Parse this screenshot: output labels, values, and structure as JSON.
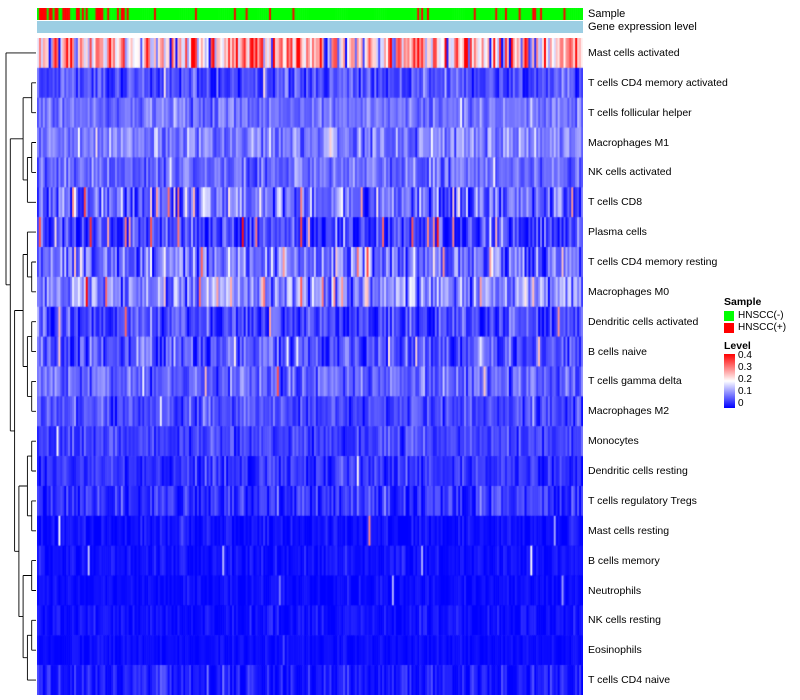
{
  "chart_data": {
    "type": "heatmap",
    "columns": 280,
    "seed": 42,
    "value_range": [
      0,
      0.4
    ],
    "colormap": {
      "low": "#0000FF",
      "mid": "#FFFFFF",
      "high": "#FF0000",
      "mid_value": 0.2
    },
    "top_annotations": [
      {
        "label": "Sample",
        "type": "categorical",
        "classes": [
          {
            "name": "HNSCC(-)",
            "color": "#00FF00"
          },
          {
            "name": "HNSCC(+)",
            "color": "#FF0000"
          }
        ],
        "segments": [
          {
            "until": 0.16,
            "red_prob": 0.6
          },
          {
            "until": 0.8,
            "red_prob": 0.07
          },
          {
            "until": 1.0,
            "red_prob": 0.2
          }
        ]
      },
      {
        "label": "Gene expression level",
        "type": "uniform",
        "color": "#9CCEE3"
      }
    ],
    "rows": [
      {
        "label": "Mast cells activated",
        "mean": 0.27,
        "sd": 0.09,
        "outlier_prob": 0.08,
        "outlier_mean": 0.04
      },
      {
        "label": "T cells CD4 memory activated",
        "mean": 0.055,
        "sd": 0.03,
        "outlier_prob": 0.03,
        "outlier_mean": 0.18
      },
      {
        "label": "T cells follicular helper",
        "mean": 0.085,
        "sd": 0.025,
        "outlier_prob": 0.02,
        "outlier_mean": 0.16
      },
      {
        "label": "Macrophages M1",
        "mean": 0.1,
        "sd": 0.035,
        "outlier_prob": 0.02,
        "outlier_mean": 0.2
      },
      {
        "label": "NK cells activated",
        "mean": 0.085,
        "sd": 0.03,
        "outlier_prob": 0.02,
        "outlier_mean": 0.18
      },
      {
        "label": "T cells CD8",
        "mean": 0.075,
        "sd": 0.05,
        "outlier_prob": 0.05,
        "outlier_mean": 0.25
      },
      {
        "label": "Plasma cells",
        "mean": 0.05,
        "sd": 0.04,
        "outlier_prob": 0.05,
        "outlier_mean": 0.3
      },
      {
        "label": "T cells CD4 memory resting",
        "mean": 0.09,
        "sd": 0.05,
        "outlier_prob": 0.04,
        "outlier_mean": 0.28
      },
      {
        "label": "Macrophages M0",
        "mean": 0.11,
        "sd": 0.05,
        "outlier_prob": 0.03,
        "outlier_mean": 0.3
      },
      {
        "label": "Dendritic cells activated",
        "mean": 0.05,
        "sd": 0.035,
        "outlier_prob": 0.03,
        "outlier_mean": 0.25
      },
      {
        "label": "B cells naive",
        "mean": 0.065,
        "sd": 0.04,
        "outlier_prob": 0.02,
        "outlier_mean": 0.2
      },
      {
        "label": "T cells gamma delta",
        "mean": 0.075,
        "sd": 0.03,
        "outlier_prob": 0.02,
        "outlier_mean": 0.22
      },
      {
        "label": "Macrophages M2",
        "mean": 0.055,
        "sd": 0.025,
        "outlier_prob": 0.01,
        "outlier_mean": 0.15
      },
      {
        "label": "Monocytes",
        "mean": 0.05,
        "sd": 0.022,
        "outlier_prob": 0.01,
        "outlier_mean": 0.14
      },
      {
        "label": "Dendritic cells resting",
        "mean": 0.04,
        "sd": 0.022,
        "outlier_prob": 0.01,
        "outlier_mean": 0.15
      },
      {
        "label": "T cells regulatory Tregs",
        "mean": 0.038,
        "sd": 0.03,
        "outlier_prob": 0.01,
        "outlier_mean": 0.12
      },
      {
        "label": "Mast cells resting",
        "mean": 0.012,
        "sd": 0.015,
        "outlier_prob": 0.008,
        "outlier_mean": 0.2
      },
      {
        "label": "B cells memory",
        "mean": 0.012,
        "sd": 0.013,
        "outlier_prob": 0.006,
        "outlier_mean": 0.15
      },
      {
        "label": "Neutrophils",
        "mean": 0.008,
        "sd": 0.01,
        "outlier_prob": 0.005,
        "outlier_mean": 0.12
      },
      {
        "label": "NK cells resting",
        "mean": 0.01,
        "sd": 0.014,
        "outlier_prob": 0.006,
        "outlier_mean": 0.15
      },
      {
        "label": "Eosinophils",
        "mean": 0.007,
        "sd": 0.009,
        "outlier_prob": 0.004,
        "outlier_mean": 0.1
      },
      {
        "label": "T cells CD4 naive",
        "mean": 0.02,
        "sd": 0.022,
        "outlier_prob": 0.01,
        "outlier_mean": 0.15
      }
    ],
    "dendrogram": [
      0,
      [
        [
          [
            1,
            2
          ],
          [
            [
              3,
              4
            ],
            5
          ]
        ],
        [
          [
            [
              6,
              [
                7,
                8
              ]
            ],
            [
              [
                9,
                10
              ],
              [
                11,
                12
              ]
            ]
          ],
          [
            [
              [
                13,
                14
              ],
              [
                15,
                16
              ]
            ],
            [
              [
                17,
                18
              ],
              [
                [
                  19,
                  20
                ],
                21
              ]
            ]
          ]
        ]
      ]
    ]
  },
  "legend": {
    "sample_title": "Sample",
    "sample_items": [
      {
        "label": "HNSCC(-)",
        "color": "#00FF00"
      },
      {
        "label": "HNSCC(+)",
        "color": "#FF0000"
      }
    ],
    "level_title": "Level",
    "level_ticks": [
      "0.4",
      "0.3",
      "0.2",
      "0.1",
      "0"
    ]
  }
}
